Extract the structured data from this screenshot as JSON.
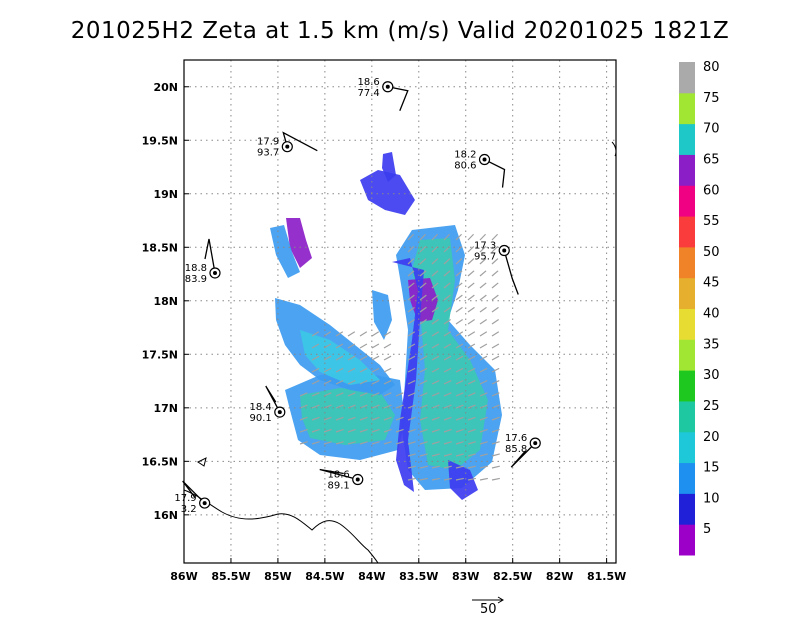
{
  "title": "201025H2  Zeta at 1.5 km (m/s) Valid 20201025  1821Z",
  "map": {
    "lon_range": [
      -86.0,
      -81.4
    ],
    "lat_range": [
      15.55,
      20.25
    ],
    "lon_ticks": [
      {
        "value": -86.0,
        "label": "86W"
      },
      {
        "value": -85.5,
        "label": "85.5W"
      },
      {
        "value": -85.0,
        "label": "85W"
      },
      {
        "value": -84.5,
        "label": "84.5W"
      },
      {
        "value": -84.0,
        "label": "84W"
      },
      {
        "value": -83.5,
        "label": "83.5W"
      },
      {
        "value": -83.0,
        "label": "83W"
      },
      {
        "value": -82.5,
        "label": "82.5W"
      },
      {
        "value": -82.0,
        "label": "82W"
      },
      {
        "value": -81.5,
        "label": "81.5W"
      }
    ],
    "lat_ticks": [
      {
        "value": 16.0,
        "label": "16N"
      },
      {
        "value": 16.5,
        "label": "16.5N"
      },
      {
        "value": 17.0,
        "label": "17N"
      },
      {
        "value": 17.5,
        "label": "17.5N"
      },
      {
        "value": 18.0,
        "label": "18N"
      },
      {
        "value": 18.5,
        "label": "18.5N"
      },
      {
        "value": 19.0,
        "label": "19N"
      },
      {
        "value": 19.5,
        "label": "19.5N"
      },
      {
        "value": 20.0,
        "label": "20N"
      }
    ],
    "grid": true,
    "observations": [
      {
        "lon": -83.83,
        "lat": 20.0,
        "top": "18.6",
        "bottom": "77.4"
      },
      {
        "lon": -84.9,
        "lat": 19.44,
        "top": "17.9",
        "bottom": "93.7"
      },
      {
        "lon": -82.8,
        "lat": 19.32,
        "top": "18.2",
        "bottom": "80.6"
      },
      {
        "lon": -85.67,
        "lat": 18.26,
        "top": "18.8",
        "bottom": "83.9"
      },
      {
        "lon": -82.59,
        "lat": 18.47,
        "top": "17.3",
        "bottom": "95.7"
      },
      {
        "lon": -84.98,
        "lat": 16.96,
        "top": "18.4",
        "bottom": "90.1"
      },
      {
        "lon": -82.26,
        "lat": 16.67,
        "top": "17.6",
        "bottom": "85.8"
      },
      {
        "lon": -84.15,
        "lat": 16.33,
        "top": "18.6",
        "bottom": "89.1"
      },
      {
        "lon": -85.78,
        "lat": 16.11,
        "top": "17.9",
        "bottom": "3.2"
      }
    ]
  },
  "colorbar": {
    "bins": [
      {
        "color": "#9c00c8"
      },
      {
        "color": "#2020d8"
      },
      {
        "color": "#1e90f0"
      },
      {
        "color": "#1ec8d8"
      },
      {
        "color": "#1ec8a0"
      },
      {
        "color": "#1ec81e"
      },
      {
        "color": "#a0e632"
      },
      {
        "color": "#e6dc32"
      },
      {
        "color": "#e6af2d"
      },
      {
        "color": "#f08228"
      },
      {
        "color": "#fa3c3c"
      },
      {
        "color": "#f00082"
      },
      {
        "color": "#8c1ec8"
      },
      {
        "color": "#1ec8c8"
      },
      {
        "color": "#a0e632"
      },
      {
        "color": "#aaaaaa"
      }
    ],
    "labels": [
      "5",
      "10",
      "15",
      "20",
      "25",
      "30",
      "35",
      "40",
      "45",
      "50",
      "55",
      "60",
      "65",
      "70",
      "75",
      "80"
    ]
  },
  "vector_legend": {
    "label": "50"
  }
}
